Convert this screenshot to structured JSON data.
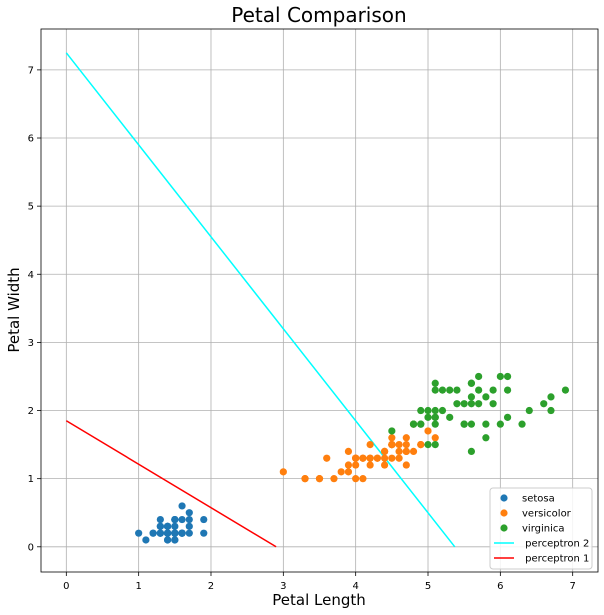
{
  "chart_data": {
    "type": "scatter",
    "title": "Petal Comparison",
    "xlabel": "Petal Length",
    "ylabel": "Petal Width",
    "xlim": [
      -0.35,
      7.35
    ],
    "ylim": [
      -0.37,
      7.6
    ],
    "xticks": [
      0,
      1,
      2,
      3,
      4,
      5,
      6,
      7
    ],
    "yticks": [
      0,
      1,
      2,
      3,
      4,
      5,
      6,
      7
    ],
    "grid": true,
    "legend_position": "bottom-right",
    "series": [
      {
        "name": "setosa",
        "kind": "scatter",
        "color": "#1f77b4",
        "points": [
          [
            1.4,
            0.2
          ],
          [
            1.4,
            0.2
          ],
          [
            1.3,
            0.2
          ],
          [
            1.5,
            0.2
          ],
          [
            1.4,
            0.2
          ],
          [
            1.7,
            0.4
          ],
          [
            1.4,
            0.3
          ],
          [
            1.5,
            0.2
          ],
          [
            1.4,
            0.2
          ],
          [
            1.5,
            0.1
          ],
          [
            1.5,
            0.2
          ],
          [
            1.6,
            0.2
          ],
          [
            1.4,
            0.1
          ],
          [
            1.1,
            0.1
          ],
          [
            1.2,
            0.2
          ],
          [
            1.5,
            0.4
          ],
          [
            1.3,
            0.4
          ],
          [
            1.4,
            0.3
          ],
          [
            1.7,
            0.3
          ],
          [
            1.5,
            0.3
          ],
          [
            1.7,
            0.2
          ],
          [
            1.5,
            0.4
          ],
          [
            1.0,
            0.2
          ],
          [
            1.7,
            0.5
          ],
          [
            1.9,
            0.2
          ],
          [
            1.6,
            0.2
          ],
          [
            1.6,
            0.4
          ],
          [
            1.5,
            0.2
          ],
          [
            1.4,
            0.2
          ],
          [
            1.6,
            0.2
          ],
          [
            1.6,
            0.2
          ],
          [
            1.5,
            0.4
          ],
          [
            1.5,
            0.1
          ],
          [
            1.4,
            0.2
          ],
          [
            1.5,
            0.2
          ],
          [
            1.2,
            0.2
          ],
          [
            1.3,
            0.2
          ],
          [
            1.4,
            0.1
          ],
          [
            1.3,
            0.2
          ],
          [
            1.5,
            0.2
          ],
          [
            1.3,
            0.3
          ],
          [
            1.3,
            0.3
          ],
          [
            1.3,
            0.2
          ],
          [
            1.6,
            0.6
          ],
          [
            1.9,
            0.4
          ],
          [
            1.4,
            0.3
          ],
          [
            1.6,
            0.2
          ],
          [
            1.4,
            0.2
          ],
          [
            1.5,
            0.2
          ],
          [
            1.4,
            0.2
          ]
        ]
      },
      {
        "name": "versicolor",
        "kind": "scatter",
        "color": "#ff7f0e",
        "points": [
          [
            4.7,
            1.4
          ],
          [
            4.5,
            1.5
          ],
          [
            4.9,
            1.5
          ],
          [
            4.0,
            1.3
          ],
          [
            4.6,
            1.5
          ],
          [
            4.5,
            1.3
          ],
          [
            4.7,
            1.6
          ],
          [
            3.3,
            1.0
          ],
          [
            4.6,
            1.3
          ],
          [
            3.9,
            1.4
          ],
          [
            3.5,
            1.0
          ],
          [
            4.2,
            1.5
          ],
          [
            4.0,
            1.0
          ],
          [
            4.7,
            1.4
          ],
          [
            3.6,
            1.3
          ],
          [
            4.4,
            1.4
          ],
          [
            4.5,
            1.5
          ],
          [
            4.1,
            1.0
          ],
          [
            4.5,
            1.5
          ],
          [
            3.9,
            1.1
          ],
          [
            4.8,
            1.8
          ],
          [
            4.0,
            1.3
          ],
          [
            4.9,
            1.5
          ],
          [
            4.7,
            1.2
          ],
          [
            4.3,
            1.3
          ],
          [
            4.4,
            1.4
          ],
          [
            4.8,
            1.4
          ],
          [
            5.0,
            1.7
          ],
          [
            4.5,
            1.5
          ],
          [
            3.5,
            1.0
          ],
          [
            3.8,
            1.1
          ],
          [
            3.7,
            1.0
          ],
          [
            3.9,
            1.2
          ],
          [
            5.1,
            1.6
          ],
          [
            4.5,
            1.5
          ],
          [
            4.5,
            1.6
          ],
          [
            4.7,
            1.5
          ],
          [
            4.4,
            1.3
          ],
          [
            4.1,
            1.3
          ],
          [
            4.0,
            1.3
          ],
          [
            4.4,
            1.2
          ],
          [
            4.6,
            1.4
          ],
          [
            4.0,
            1.2
          ],
          [
            3.3,
            1.0
          ],
          [
            4.2,
            1.3
          ],
          [
            4.2,
            1.2
          ],
          [
            4.2,
            1.3
          ],
          [
            4.3,
            1.3
          ],
          [
            3.0,
            1.1
          ],
          [
            4.1,
            1.3
          ]
        ]
      },
      {
        "name": "virginica",
        "kind": "scatter",
        "color": "#2ca02c",
        "points": [
          [
            6.0,
            2.5
          ],
          [
            5.1,
            1.9
          ],
          [
            5.9,
            2.1
          ],
          [
            5.6,
            1.8
          ],
          [
            5.8,
            2.2
          ],
          [
            6.6,
            2.1
          ],
          [
            4.5,
            1.7
          ],
          [
            6.3,
            1.8
          ],
          [
            5.8,
            1.8
          ],
          [
            6.1,
            2.5
          ],
          [
            5.1,
            2.0
          ],
          [
            5.3,
            1.9
          ],
          [
            5.5,
            2.1
          ],
          [
            5.0,
            2.0
          ],
          [
            5.1,
            2.4
          ],
          [
            5.3,
            2.3
          ],
          [
            5.5,
            1.8
          ],
          [
            6.7,
            2.2
          ],
          [
            6.9,
            2.3
          ],
          [
            5.0,
            1.5
          ],
          [
            5.7,
            2.3
          ],
          [
            4.9,
            2.0
          ],
          [
            6.7,
            2.0
          ],
          [
            4.9,
            1.8
          ],
          [
            5.7,
            2.1
          ],
          [
            6.0,
            1.8
          ],
          [
            4.8,
            1.8
          ],
          [
            4.9,
            1.8
          ],
          [
            5.6,
            2.1
          ],
          [
            5.8,
            1.6
          ],
          [
            6.1,
            1.9
          ],
          [
            6.4,
            2.0
          ],
          [
            5.6,
            2.2
          ],
          [
            5.1,
            1.5
          ],
          [
            5.6,
            1.4
          ],
          [
            6.1,
            2.3
          ],
          [
            5.6,
            2.4
          ],
          [
            5.5,
            1.8
          ],
          [
            4.8,
            1.8
          ],
          [
            5.4,
            2.1
          ],
          [
            5.6,
            2.4
          ],
          [
            5.1,
            2.3
          ],
          [
            5.1,
            1.9
          ],
          [
            5.9,
            2.3
          ],
          [
            5.7,
            2.5
          ],
          [
            5.2,
            2.3
          ],
          [
            5.0,
            1.9
          ],
          [
            5.2,
            2.0
          ],
          [
            5.4,
            2.3
          ],
          [
            5.1,
            1.8
          ]
        ]
      },
      {
        "name": " perceptron 2",
        "kind": "line",
        "color": "#00ffff",
        "points": [
          [
            0,
            7.25
          ],
          [
            5.37,
            0
          ]
        ]
      },
      {
        "name": " perceptron 1",
        "kind": "line",
        "color": "#ff0000",
        "points": [
          [
            0,
            1.85
          ],
          [
            2.9,
            0
          ]
        ]
      }
    ]
  }
}
